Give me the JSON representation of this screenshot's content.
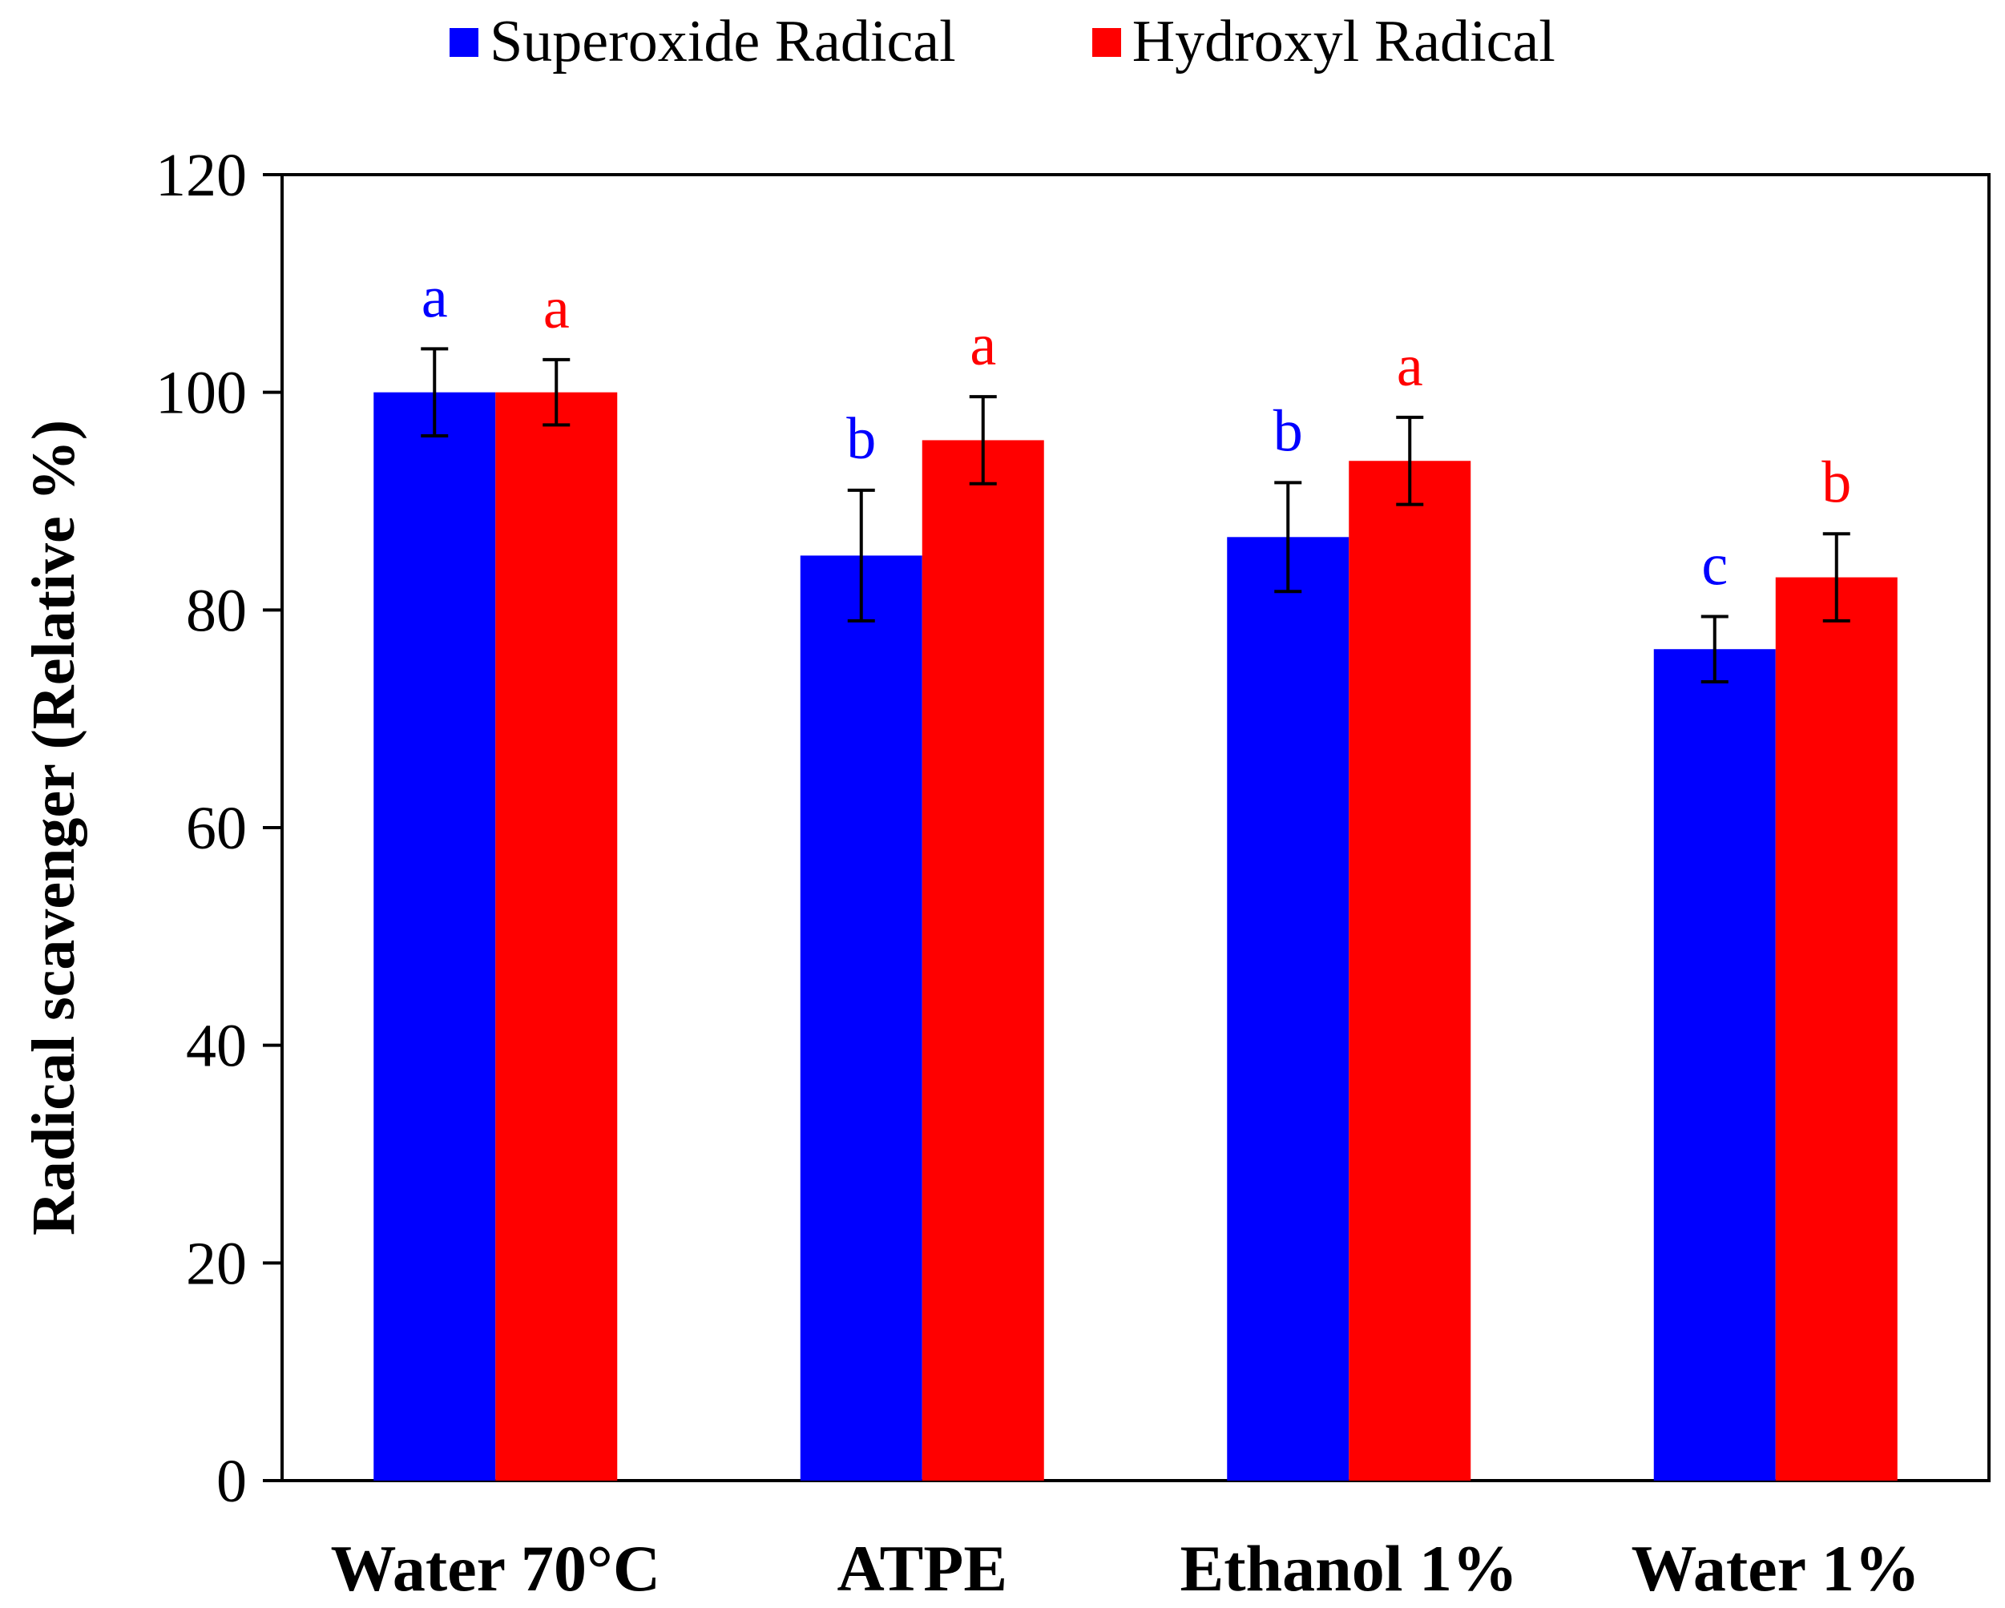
{
  "chart_data": {
    "type": "bar",
    "title": "",
    "xlabel": "",
    "ylabel": "Radical scavenger (Relative %)",
    "ylim": [
      0,
      120
    ],
    "yticks": [
      0,
      20,
      40,
      60,
      80,
      100,
      120
    ],
    "grid": false,
    "legend_position": "top-center",
    "categories": [
      "Water 70°C",
      "ATPE",
      "Ethanol 1%",
      "Water 1%"
    ],
    "series": [
      {
        "name": "Superoxide Radical",
        "color": "#0000ff",
        "values": [
          100,
          85,
          86.7,
          76.4
        ],
        "errors": [
          4,
          6,
          5,
          3
        ],
        "letters": [
          "a",
          "b",
          "b",
          "c"
        ]
      },
      {
        "name": "Hydroxyl Radical",
        "color": "#ff0000",
        "values": [
          100,
          95.6,
          93.7,
          83
        ],
        "errors": [
          3,
          4,
          4,
          4
        ],
        "letters": [
          "a",
          "a",
          "a",
          "b"
        ]
      }
    ]
  }
}
